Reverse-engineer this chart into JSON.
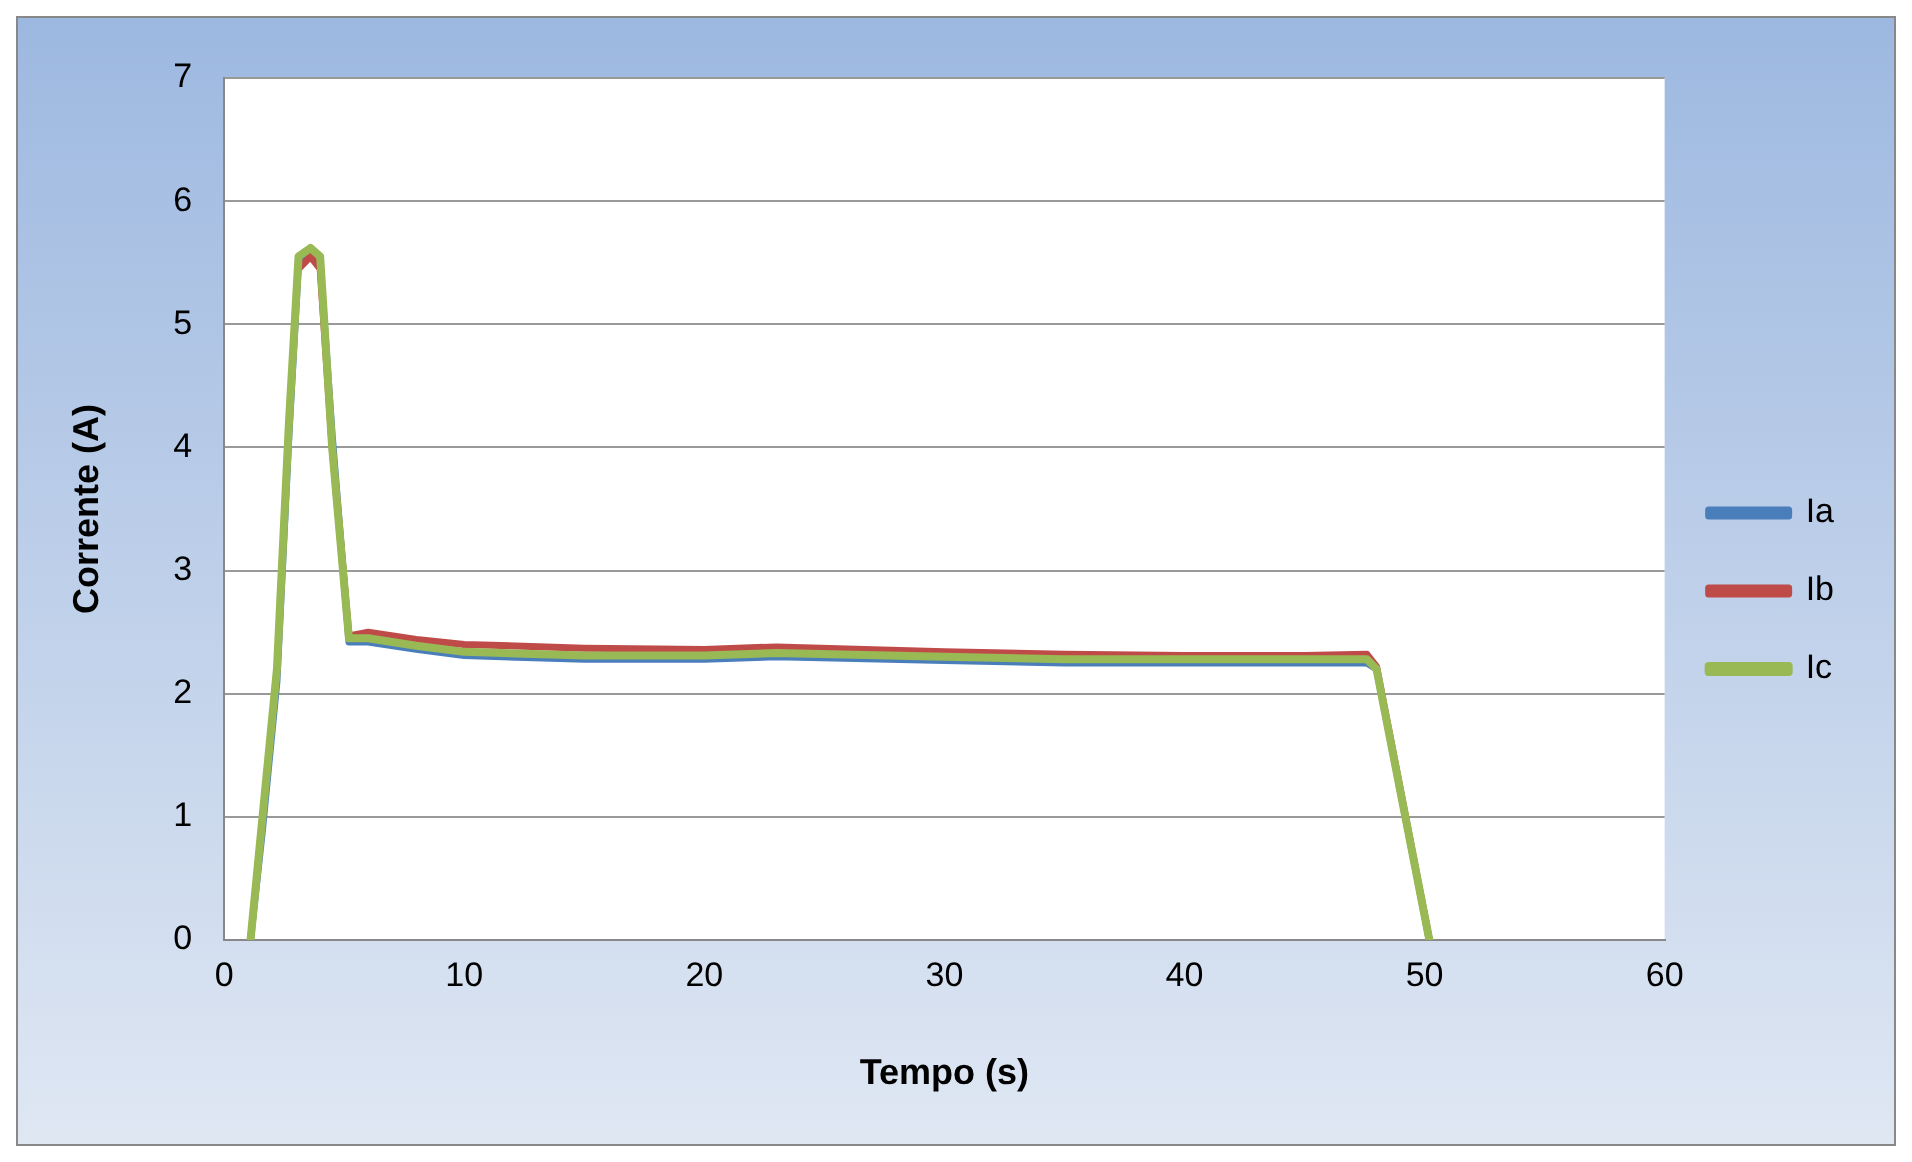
{
  "chart_data": {
    "type": "line",
    "xlabel": "Tempo (s)",
    "ylabel": "Corrente (A)",
    "xlim": [
      0,
      60
    ],
    "xticks": [
      0,
      10,
      20,
      30,
      40,
      50,
      60
    ],
    "ylim": [
      0,
      7
    ],
    "yticks": [
      0,
      1,
      2,
      3,
      4,
      5,
      6,
      7
    ],
    "grid": "y",
    "legend": "right",
    "marker": "none",
    "line_style": "solid",
    "series": [
      {
        "name": "Ia",
        "color": "#4a7ebb",
        "x": [
          1.1,
          1.6,
          2.2,
          2.7,
          3.1,
          3.6,
          4.0,
          4.5,
          5.2,
          6,
          8,
          10,
          15,
          20,
          23,
          30,
          35,
          40,
          45,
          47.6,
          48,
          50.2
        ],
        "values": [
          0,
          0.9,
          2.1,
          4.1,
          5.5,
          5.6,
          5.5,
          4.1,
          2.42,
          2.42,
          2.36,
          2.31,
          2.28,
          2.28,
          2.3,
          2.27,
          2.25,
          2.25,
          2.25,
          2.25,
          2.2,
          0
        ]
      },
      {
        "name": "Ib",
        "color": "#be4b48",
        "x": [
          3.1,
          3.6,
          4.0,
          4.5,
          5.2,
          6,
          8,
          10,
          15,
          20,
          23,
          30,
          35,
          40,
          45,
          47.6,
          48,
          50.2
        ],
        "values": [
          5.45,
          5.55,
          5.45,
          4,
          2.47,
          2.5,
          2.44,
          2.4,
          2.37,
          2.36,
          2.38,
          2.34,
          2.32,
          2.31,
          2.31,
          2.32,
          2.22,
          0
        ]
      },
      {
        "name": "Ic",
        "color": "#98b954",
        "x": [
          1.1,
          1.6,
          2.2,
          2.7,
          3.1,
          3.6,
          4.0,
          4.5,
          5.2,
          6,
          8,
          10,
          15,
          20,
          23,
          30,
          35,
          40,
          45,
          47.6,
          48,
          50.2
        ],
        "values": [
          0,
          1,
          2.2,
          4.2,
          5.55,
          5.62,
          5.55,
          4,
          2.45,
          2.45,
          2.39,
          2.34,
          2.31,
          2.31,
          2.33,
          2.3,
          2.28,
          2.28,
          2.28,
          2.28,
          2.2,
          0
        ]
      }
    ]
  }
}
